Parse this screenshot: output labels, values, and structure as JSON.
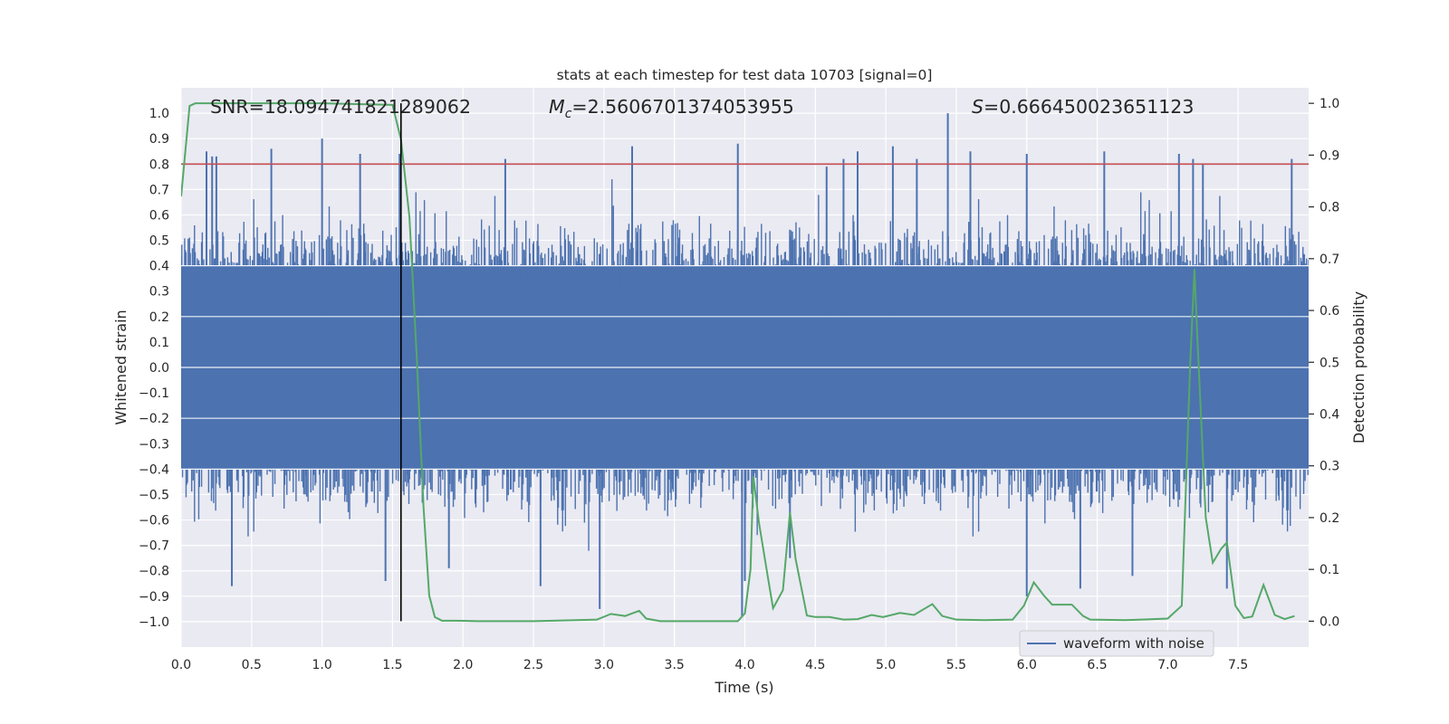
{
  "chart_data": {
    "type": "line",
    "title": "stats at each timestep for test data 10703 [signal=0]",
    "xlabel": "Time (s)",
    "ylabel_left": "Whitened strain",
    "ylabel_right": "Detection probability",
    "xlim": [
      0.0,
      8.0
    ],
    "ylim_left": [
      -1.1,
      1.1
    ],
    "ylim_right": [
      -0.05,
      1.03
    ],
    "x_ticks": [
      0.0,
      0.5,
      1.0,
      1.5,
      2.0,
      2.5,
      3.0,
      3.5,
      4.0,
      4.5,
      5.0,
      5.5,
      6.0,
      6.5,
      7.0,
      7.5
    ],
    "x_tick_labels": [
      "0.0",
      "0.5",
      "1.0",
      "1.5",
      "2.0",
      "2.5",
      "3.0",
      "3.5",
      "4.0",
      "4.5",
      "5.0",
      "5.5",
      "6.0",
      "6.5",
      "7.0",
      "7.5"
    ],
    "y_left_ticks": [
      -1.0,
      -0.9,
      -0.8,
      -0.7,
      -0.6,
      -0.5,
      -0.4,
      -0.3,
      -0.2,
      -0.1,
      0.0,
      0.1,
      0.2,
      0.3,
      0.4,
      0.5,
      0.6,
      0.7,
      0.8,
      0.9,
      1.0
    ],
    "y_left_tick_labels": [
      "−1.0",
      "−0.9",
      "−0.8",
      "−0.7",
      "−0.6",
      "−0.5",
      "−0.4",
      "−0.3",
      "−0.2",
      "−0.1",
      "0.0",
      "0.1",
      "0.2",
      "0.3",
      "0.4",
      "0.5",
      "0.6",
      "0.7",
      "0.8",
      "0.9",
      "1.0"
    ],
    "y_right_ticks": [
      0.0,
      0.1,
      0.2,
      0.3,
      0.4,
      0.5,
      0.6,
      0.7,
      0.8,
      0.9,
      1.0
    ],
    "y_right_tick_labels": [
      "0.0",
      "0.1",
      "0.2",
      "0.3",
      "0.4",
      "0.5",
      "0.6",
      "0.7",
      "0.8",
      "0.9",
      "1.0"
    ],
    "annotations": {
      "snr": "SNR=18.094741821289062",
      "mc_symbol": "M",
      "mc_subscript": "c",
      "mc_value": "=2.5606701374053955",
      "s_symbol": "S",
      "s_value": "=0.666450023651123"
    },
    "threshold": {
      "value_left": 0.8,
      "color": "#c44e52"
    },
    "marker_line": {
      "x": 1.56,
      "color": "#000000"
    },
    "waveform": {
      "name": "waveform with noise",
      "color": "#4c72b0",
      "duration": 8.0,
      "typical_envelope": [
        -0.4,
        0.4
      ],
      "peaks": [
        {
          "t": 0.18,
          "v": 0.85
        },
        {
          "t": 0.22,
          "v": 0.83
        },
        {
          "t": 0.25,
          "v": 0.83
        },
        {
          "t": 0.36,
          "v": -0.86
        },
        {
          "t": 0.64,
          "v": 0.86
        },
        {
          "t": 1.0,
          "v": 0.9
        },
        {
          "t": 1.27,
          "v": 0.84
        },
        {
          "t": 1.55,
          "v": 0.84
        },
        {
          "t": 1.45,
          "v": -0.84
        },
        {
          "t": 1.9,
          "v": -0.79
        },
        {
          "t": 2.3,
          "v": 0.82
        },
        {
          "t": 2.55,
          "v": -0.86
        },
        {
          "t": 2.97,
          "v": -0.95
        },
        {
          "t": 3.2,
          "v": 0.87
        },
        {
          "t": 3.95,
          "v": 0.88
        },
        {
          "t": 3.98,
          "v": -0.98
        },
        {
          "t": 4.0,
          "v": -0.84
        },
        {
          "t": 4.32,
          "v": -0.75
        },
        {
          "t": 4.58,
          "v": 0.79
        },
        {
          "t": 4.7,
          "v": 0.82
        },
        {
          "t": 4.8,
          "v": 0.85
        },
        {
          "t": 5.05,
          "v": 0.87
        },
        {
          "t": 5.22,
          "v": 0.82
        },
        {
          "t": 5.44,
          "v": 1.0
        },
        {
          "t": 5.6,
          "v": 0.85
        },
        {
          "t": 6.0,
          "v": 0.84
        },
        {
          "t": 6.0,
          "v": -0.9
        },
        {
          "t": 6.38,
          "v": -0.87
        },
        {
          "t": 6.55,
          "v": 0.85
        },
        {
          "t": 6.75,
          "v": -0.82
        },
        {
          "t": 7.08,
          "v": 0.84
        },
        {
          "t": 7.18,
          "v": 0.82
        },
        {
          "t": 7.25,
          "v": 0.8
        },
        {
          "t": 7.42,
          "v": -0.87
        },
        {
          "t": 7.88,
          "v": 0.82
        }
      ]
    },
    "probability": {
      "color": "#55a868",
      "points": [
        [
          0.0,
          0.82
        ],
        [
          0.06,
          0.995
        ],
        [
          0.1,
          1.0
        ],
        [
          0.5,
          1.0
        ],
        [
          1.0,
          1.0
        ],
        [
          1.5,
          0.997
        ],
        [
          1.56,
          0.93
        ],
        [
          1.62,
          0.78
        ],
        [
          1.67,
          0.52
        ],
        [
          1.72,
          0.22
        ],
        [
          1.76,
          0.05
        ],
        [
          1.8,
          0.008
        ],
        [
          1.85,
          0.001
        ],
        [
          1.95,
          0.001
        ],
        [
          2.1,
          0.0
        ],
        [
          2.5,
          0.0
        ],
        [
          2.8,
          0.002
        ],
        [
          2.95,
          0.003
        ],
        [
          3.05,
          0.014
        ],
        [
          3.15,
          0.01
        ],
        [
          3.25,
          0.02
        ],
        [
          3.3,
          0.005
        ],
        [
          3.4,
          0.0
        ],
        [
          3.7,
          0.0
        ],
        [
          3.95,
          0.0
        ],
        [
          4.0,
          0.015
        ],
        [
          4.04,
          0.1
        ],
        [
          4.06,
          0.28
        ],
        [
          4.1,
          0.19
        ],
        [
          4.16,
          0.09
        ],
        [
          4.2,
          0.025
        ],
        [
          4.27,
          0.06
        ],
        [
          4.32,
          0.21
        ],
        [
          4.36,
          0.12
        ],
        [
          4.44,
          0.011
        ],
        [
          4.5,
          0.008
        ],
        [
          4.6,
          0.008
        ],
        [
          4.7,
          0.003
        ],
        [
          4.8,
          0.004
        ],
        [
          4.9,
          0.012
        ],
        [
          4.98,
          0.008
        ],
        [
          5.1,
          0.016
        ],
        [
          5.2,
          0.012
        ],
        [
          5.33,
          0.033
        ],
        [
          5.4,
          0.01
        ],
        [
          5.5,
          0.003
        ],
        [
          5.7,
          0.002
        ],
        [
          5.9,
          0.003
        ],
        [
          5.98,
          0.03
        ],
        [
          6.05,
          0.075
        ],
        [
          6.12,
          0.05
        ],
        [
          6.18,
          0.032
        ],
        [
          6.32,
          0.032
        ],
        [
          6.4,
          0.01
        ],
        [
          6.45,
          0.003
        ],
        [
          6.7,
          0.002
        ],
        [
          7.0,
          0.005
        ],
        [
          7.1,
          0.03
        ],
        [
          7.16,
          0.5
        ],
        [
          7.19,
          0.68
        ],
        [
          7.21,
          0.55
        ],
        [
          7.27,
          0.2
        ],
        [
          7.32,
          0.113
        ],
        [
          7.38,
          0.14
        ],
        [
          7.42,
          0.152
        ],
        [
          7.48,
          0.03
        ],
        [
          7.54,
          0.006
        ],
        [
          7.6,
          0.009
        ],
        [
          7.68,
          0.07
        ],
        [
          7.76,
          0.012
        ],
        [
          7.83,
          0.004
        ],
        [
          7.9,
          0.01
        ]
      ]
    },
    "legend": {
      "entries": [
        "waveform with noise"
      ],
      "placement": "lower-right"
    }
  }
}
